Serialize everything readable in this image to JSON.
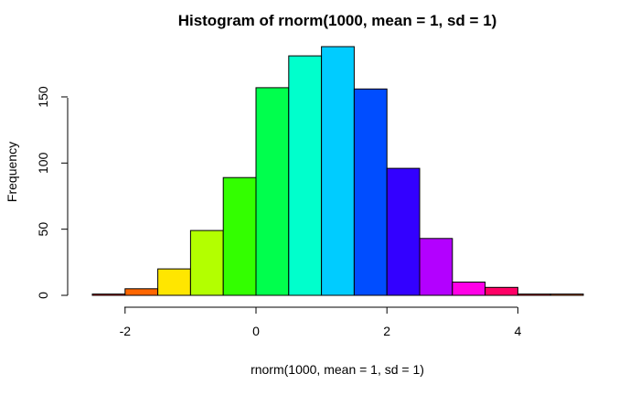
{
  "chart_data": {
    "type": "bar",
    "title": "Histogram of rnorm(1000, mean = 1, sd = 1)",
    "xlabel": "rnorm(1000, mean = 1, sd = 1)",
    "ylabel": "Frequency",
    "bin_width": 0.5,
    "bins": [
      {
        "start": -2.5,
        "end": -2.0,
        "count": 1,
        "color": "#FF0000"
      },
      {
        "start": -2.0,
        "end": -1.5,
        "count": 5,
        "color": "#FF6600"
      },
      {
        "start": -1.5,
        "end": -1.0,
        "count": 20,
        "color": "#FFE600"
      },
      {
        "start": -1.0,
        "end": -0.5,
        "count": 49,
        "color": "#B3FF00"
      },
      {
        "start": -0.5,
        "end": 0.0,
        "count": 89,
        "color": "#33FF00"
      },
      {
        "start": 0.0,
        "end": 0.5,
        "count": 157,
        "color": "#00FF4D"
      },
      {
        "start": 0.5,
        "end": 1.0,
        "count": 181,
        "color": "#00FFCC"
      },
      {
        "start": 1.0,
        "end": 1.5,
        "count": 188,
        "color": "#00CCFF"
      },
      {
        "start": 1.5,
        "end": 2.0,
        "count": 156,
        "color": "#004DFF"
      },
      {
        "start": 2.0,
        "end": 2.5,
        "count": 96,
        "color": "#3300FF"
      },
      {
        "start": 2.5,
        "end": 3.0,
        "count": 43,
        "color": "#B300FF"
      },
      {
        "start": 3.0,
        "end": 3.5,
        "count": 10,
        "color": "#FF00E6"
      },
      {
        "start": 3.5,
        "end": 4.0,
        "count": 6,
        "color": "#FF0066"
      },
      {
        "start": 4.0,
        "end": 4.5,
        "count": 1,
        "color": "#FF0000"
      },
      {
        "start": 4.5,
        "end": 5.0,
        "count": 1,
        "color": "#FF6600"
      }
    ],
    "xlim": [
      -2.5,
      5.0
    ],
    "ylim": [
      0,
      188
    ],
    "x_ticks": [
      -2,
      0,
      2,
      4
    ],
    "x_tick_labels": [
      "-2",
      "0",
      "2",
      "4"
    ],
    "y_ticks": [
      0,
      50,
      100,
      150
    ],
    "y_tick_labels": [
      "0",
      "50",
      "100",
      "150"
    ],
    "grid": false,
    "legend": "none"
  }
}
